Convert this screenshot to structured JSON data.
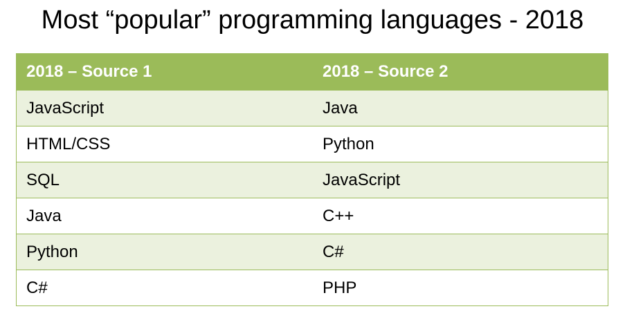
{
  "title": "Most “popular” programming languages - 2018",
  "table": {
    "headers": [
      "2018 – Source 1",
      "2018 – Source 2"
    ],
    "rows": [
      [
        "JavaScript",
        "Java"
      ],
      [
        "HTML/CSS",
        "Python"
      ],
      [
        "SQL",
        "JavaScript"
      ],
      [
        "Java",
        "C++"
      ],
      [
        "Python",
        "C#"
      ],
      [
        "C#",
        "PHP"
      ]
    ]
  },
  "colors": {
    "header_bg": "#9bbb59",
    "shaded_row_bg": "#ebf1de",
    "border": "#9bbb59",
    "header_text": "#ffffff"
  }
}
